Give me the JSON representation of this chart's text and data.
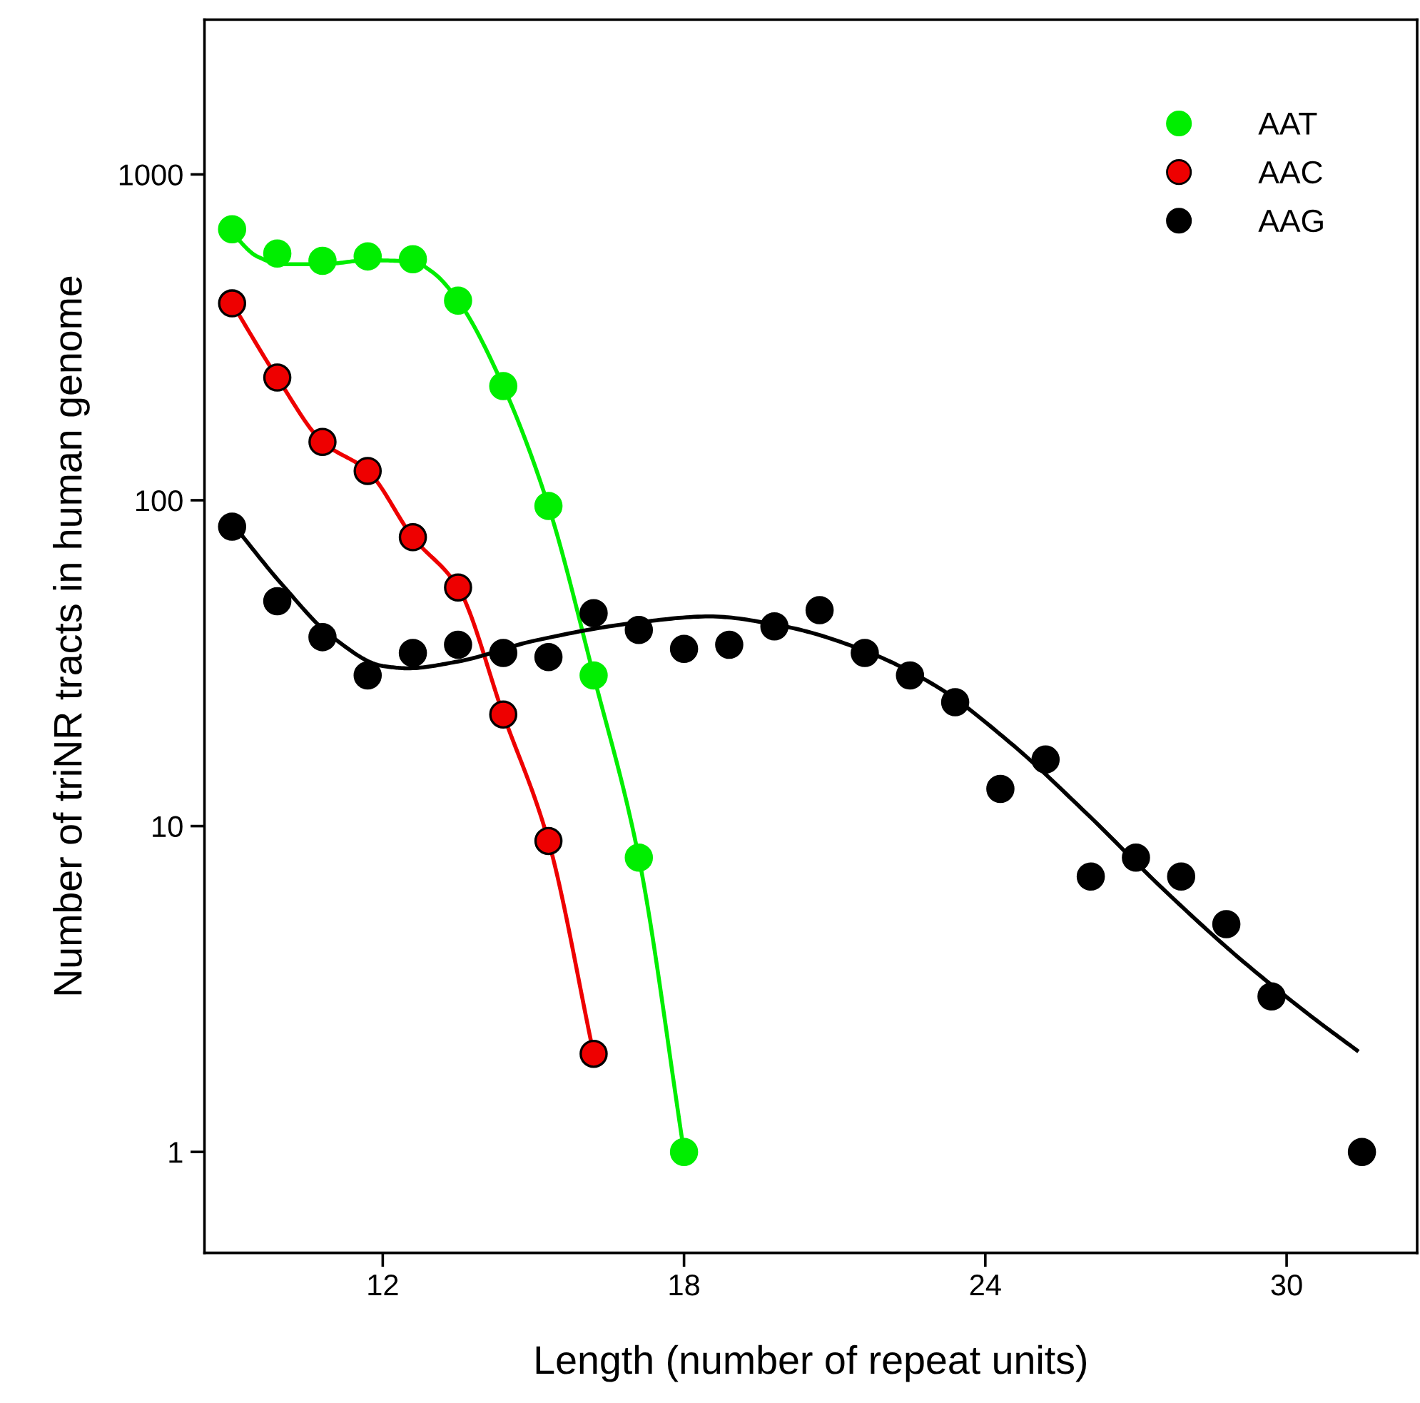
{
  "chart_data": {
    "type": "scatter",
    "xlabel": "Length (number of repeat units)",
    "ylabel": "Number of triNR tracts in human genome",
    "log": "y",
    "xlim": [
      8.45,
      32.6
    ],
    "xticks": [
      12,
      18,
      24,
      30
    ],
    "ylim": [
      0.49,
      2985
    ],
    "yticks": [
      1,
      10,
      100,
      1000
    ],
    "grid": false,
    "legend": "top right",
    "marker": "circle",
    "series": [
      {
        "name": "AAT",
        "color": "#00ee00",
        "x": [
          9.0,
          9.9,
          10.8,
          11.7,
          12.6,
          13.5,
          14.4,
          15.3,
          16.2,
          17.1,
          18.0
        ],
        "values": [
          679,
          572,
          543,
          560,
          549,
          410,
          224,
          96,
          29,
          8,
          1
        ]
      },
      {
        "name": "AAC",
        "color": "#ee0000",
        "x": [
          9.0,
          9.9,
          10.8,
          11.7,
          12.6,
          13.5,
          14.4,
          15.3,
          16.2
        ],
        "values": [
          402,
          238,
          151,
          123,
          77,
          54,
          22,
          9,
          2
        ]
      },
      {
        "name": "AAG",
        "color": "#000000",
        "x": [
          9.0,
          9.9,
          10.8,
          11.7,
          12.6,
          13.5,
          14.4,
          15.3,
          16.2,
          17.1,
          18.0,
          18.9,
          19.8,
          20.7,
          21.6,
          22.5,
          23.4,
          24.3,
          25.2,
          26.1,
          27.0,
          27.9,
          28.8,
          29.7,
          31.5
        ],
        "values": [
          83,
          49,
          38,
          29,
          34,
          36,
          34,
          33,
          45,
          40,
          35,
          36,
          41,
          46,
          34,
          29,
          24,
          13,
          16,
          7,
          8,
          7,
          5,
          3,
          1
        ]
      },
      {
        "type": "line",
        "marker": "none",
        "color": "#00ee00",
        "x": [
          9.0,
          9.5,
          10.0,
          10.8,
          11.7,
          12.6,
          13.0,
          13.5,
          14.4,
          15.3,
          16.2,
          17.1,
          18.0
        ],
        "values": [
          660,
          560,
          530,
          530,
          545,
          540,
          500,
          410,
          224,
          96,
          29,
          8,
          1
        ]
      },
      {
        "type": "line",
        "marker": "none",
        "color": "#ee0000",
        "x": [
          9.0,
          9.9,
          10.8,
          11.7,
          12.6,
          13.5,
          14.4,
          15.3,
          16.2
        ],
        "values": [
          402,
          238,
          151,
          123,
          77,
          54,
          22,
          9,
          2
        ]
      },
      {
        "type": "line",
        "marker": "none",
        "color": "#000000",
        "x": [
          9.0,
          10.0,
          11.0,
          12.0,
          12.5,
          13.5,
          15.0,
          17.0,
          18.5,
          20.0,
          21.5,
          23.0,
          24.5,
          26.0,
          27.5,
          29.0,
          30.5,
          31.4
        ],
        "values": [
          85,
          55,
          38,
          31,
          30.5,
          32,
          37,
          42,
          44,
          41,
          35,
          27,
          18,
          11,
          6.5,
          4,
          2.6,
          2.05
        ]
      }
    ]
  }
}
